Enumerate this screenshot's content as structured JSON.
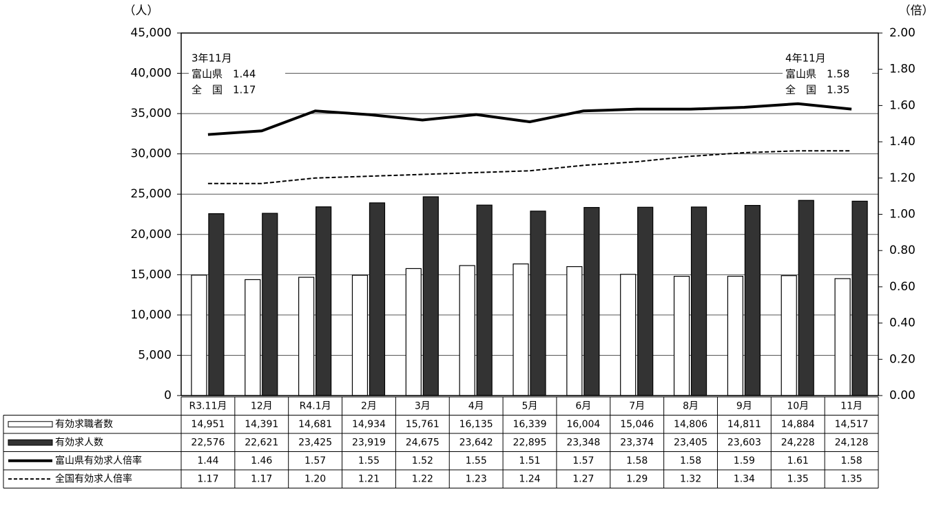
{
  "chart_data": {
    "type": "bar-line-table",
    "y_unit": "（人）",
    "y2_unit": "（倍）",
    "categories": [
      "R3.11月",
      "12月",
      "R4.1月",
      "2月",
      "3月",
      "4月",
      "5月",
      "6月",
      "7月",
      "8月",
      "9月",
      "10月",
      "11月"
    ],
    "ylim": [
      0,
      45000
    ],
    "yticks": [
      0,
      {
        "value": 5000,
        "label": "5,000"
      },
      {
        "value": 10000,
        "label": "10,000"
      },
      {
        "value": 15000,
        "label": "15,000"
      },
      {
        "value": 20000,
        "label": "20,000"
      },
      {
        "value": 25000,
        "label": "25,000"
      },
      {
        "value": 30000,
        "label": "30,000"
      },
      {
        "value": 35000,
        "label": "35,000"
      },
      {
        "value": 40000,
        "label": "40,000"
      },
      {
        "value": 45000,
        "label": "45,000"
      }
    ],
    "y2lim": [
      0,
      2
    ],
    "y2ticks": [
      {
        "value": 0,
        "label": "0.00"
      },
      {
        "value": 0.2,
        "label": "0.20"
      },
      {
        "value": 0.4,
        "label": "0.40"
      },
      {
        "value": 0.6,
        "label": "0.60"
      },
      {
        "value": 0.8,
        "label": "0.80"
      },
      {
        "value": 1,
        "label": "1.00"
      },
      {
        "value": 1.2,
        "label": "1.20"
      },
      {
        "value": 1.4,
        "label": "1.40"
      },
      {
        "value": 1.6,
        "label": "1.60"
      },
      {
        "value": 1.8,
        "label": "1.80"
      },
      {
        "value": 2,
        "label": "2.00"
      }
    ],
    "grid": true,
    "series": [
      {
        "name": "有効求職者数",
        "kind": "bar",
        "color": "#ffffff",
        "values": [
          14951,
          14391,
          14681,
          14934,
          15761,
          16135,
          16339,
          16004,
          15046,
          14806,
          14811,
          14884,
          14517
        ],
        "value_labels": [
          "14,951",
          "14,391",
          "14,681",
          "14,934",
          "15,761",
          "16,135",
          "16,339",
          "16,004",
          "15,046",
          "14,806",
          "14,811",
          "14,884",
          "14,517"
        ]
      },
      {
        "name": "有効求人数",
        "kind": "bar",
        "color": "#333333",
        "values": [
          22576,
          22621,
          23425,
          23919,
          24675,
          23642,
          22895,
          23348,
          23374,
          23405,
          23603,
          24228,
          24128
        ],
        "value_labels": [
          "22,576",
          "22,621",
          "23,425",
          "23,919",
          "24,675",
          "23,642",
          "22,895",
          "23,348",
          "23,374",
          "23,405",
          "23,603",
          "24,228",
          "24,128"
        ]
      },
      {
        "name": "富山県有効求人倍率",
        "kind": "line",
        "axis": "y2",
        "color": "#000000",
        "values": [
          1.44,
          1.46,
          1.57,
          1.55,
          1.52,
          1.55,
          1.51,
          1.57,
          1.58,
          1.58,
          1.59,
          1.61,
          1.58
        ],
        "value_labels": [
          "1.44",
          "1.46",
          "1.57",
          "1.55",
          "1.52",
          "1.55",
          "1.51",
          "1.57",
          "1.58",
          "1.58",
          "1.59",
          "1.61",
          "1.58"
        ]
      },
      {
        "name": "全国有効求人倍率",
        "kind": "dashed-line",
        "axis": "y2",
        "color": "#000000",
        "values": [
          1.17,
          1.17,
          1.2,
          1.21,
          1.22,
          1.23,
          1.24,
          1.27,
          1.29,
          1.32,
          1.34,
          1.35,
          1.35
        ],
        "value_labels": [
          "1.17",
          "1.17",
          "1.20",
          "1.21",
          "1.22",
          "1.23",
          "1.24",
          "1.27",
          "1.29",
          "1.32",
          "1.34",
          "1.35",
          "1.35"
        ]
      }
    ],
    "annotations": [
      {
        "lines": [
          "3年11月",
          "富山県　1.44",
          "全　国　1.17"
        ]
      },
      {
        "lines": [
          "4年11月",
          "富山県　1.58",
          "全　国　1.35"
        ]
      }
    ]
  }
}
